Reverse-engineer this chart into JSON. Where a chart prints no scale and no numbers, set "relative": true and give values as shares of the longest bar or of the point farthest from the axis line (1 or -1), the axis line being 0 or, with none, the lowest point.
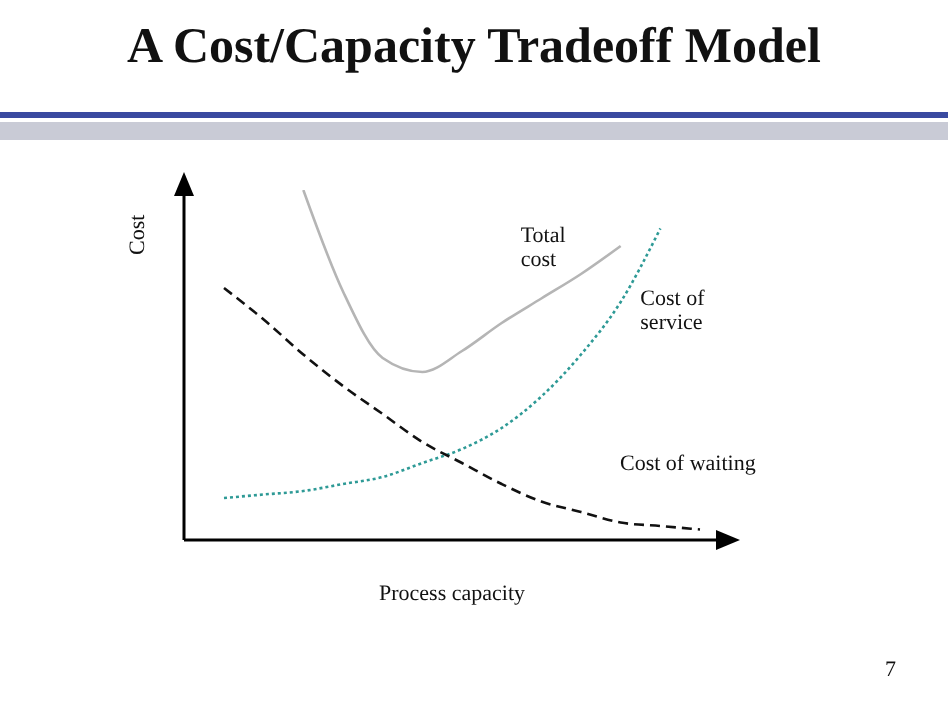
{
  "chart_data": {
    "type": "line",
    "title": "A Cost/Capacity Tradeoff Model",
    "xlabel": "Process capacity",
    "ylabel": "Cost",
    "relative": true,
    "marker": "none",
    "categories": [
      null,
      null,
      null,
      null,
      null,
      null,
      null,
      null,
      null,
      null,
      null,
      null,
      null
    ],
    "series": [
      {
        "name": "Total cost",
        "color": "#b5b5b5",
        "line_style": "solid",
        "values": [
          null,
          null,
          1,
          0.71,
          0.52,
          0.48,
          0.54,
          0.62,
          0.69,
          0.76,
          0.84,
          null,
          null
        ]
      },
      {
        "name": "Cost of service",
        "color": "#2e9a96",
        "line_style": "dotted",
        "values": [
          0.12,
          0.13,
          0.14,
          0.16,
          0.18,
          0.22,
          0.26,
          0.32,
          0.41,
          0.53,
          0.68,
          0.89,
          null
        ]
      },
      {
        "name": "Cost of waiting",
        "color": "#111111",
        "line_style": "dashed",
        "values": [
          0.72,
          0.63,
          0.53,
          0.44,
          0.36,
          0.28,
          0.22,
          0.16,
          0.11,
          0.08,
          0.05,
          0.04,
          0.03
        ]
      }
    ],
    "annotations": [
      "7"
    ]
  }
}
